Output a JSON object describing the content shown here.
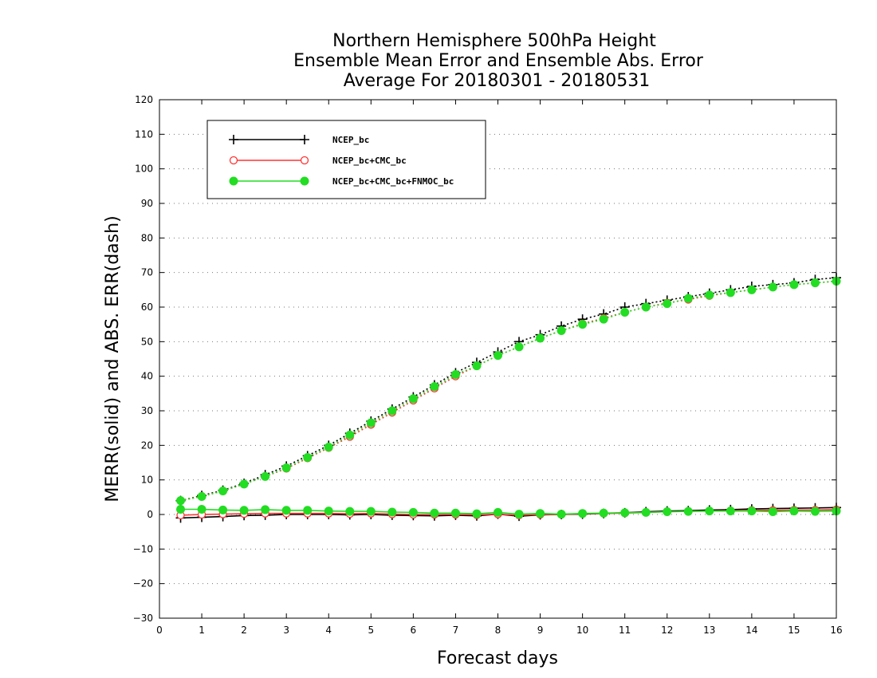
{
  "chart_data": {
    "type": "line",
    "title_lines": [
      "Northern Hemisphere 500hPa Height",
      "Ensemble Mean Error and Ensemble Abs. Error",
      "Average For 20180301 - 20180531"
    ],
    "xlabel": "Forecast days",
    "ylabel": "MERR(solid) and ABS. ERR(dash)",
    "xlim": [
      0,
      16
    ],
    "ylim": [
      -30,
      120
    ],
    "x_ticks": [
      0,
      1,
      2,
      3,
      4,
      5,
      6,
      7,
      8,
      9,
      10,
      11,
      12,
      13,
      14,
      15,
      16
    ],
    "y_ticks": [
      -30,
      -20,
      -10,
      0,
      10,
      20,
      30,
      40,
      50,
      60,
      70,
      80,
      90,
      100,
      110,
      120
    ],
    "grid": "dotted horizontal",
    "legend_position": "top-left",
    "x": [
      0.5,
      1,
      1.5,
      2,
      2.5,
      3,
      3.5,
      4,
      4.5,
      5,
      5.5,
      6,
      6.5,
      7,
      7.5,
      8,
      8.5,
      9,
      9.5,
      10,
      10.5,
      11,
      11.5,
      12,
      12.5,
      13,
      13.5,
      14,
      14.5,
      15,
      15.5,
      16
    ],
    "series": [
      {
        "name": "NCEP_bc",
        "color": "#000000",
        "marker": "plus",
        "merr": [
          -1.0,
          -0.8,
          -0.6,
          -0.3,
          -0.2,
          0.0,
          0.0,
          0.0,
          -0.1,
          0.0,
          -0.2,
          -0.3,
          -0.4,
          -0.2,
          -0.4,
          0.1,
          -0.5,
          -0.1,
          0.0,
          0.1,
          0.3,
          0.5,
          0.8,
          1.0,
          1.1,
          1.3,
          1.4,
          1.6,
          1.7,
          1.8,
          1.9,
          2.0
        ],
        "abs_err": [
          4.0,
          5.5,
          7.0,
          9.0,
          11.5,
          14.0,
          17.0,
          20.0,
          23.5,
          27.0,
          30.5,
          34.0,
          37.5,
          41.0,
          44.0,
          47.0,
          50.0,
          52.0,
          54.5,
          56.5,
          58.0,
          60.0,
          61.0,
          62.0,
          63.0,
          64.0,
          65.0,
          66.0,
          66.5,
          67.0,
          68.0,
          68.5
        ]
      },
      {
        "name": "NCEP_bc+CMC_bc",
        "color": "#ff3333",
        "marker": "open-circle",
        "merr": [
          -0.2,
          0.0,
          0.1,
          0.2,
          0.3,
          0.3,
          0.3,
          0.3,
          0.2,
          0.3,
          0.1,
          0.0,
          0.0,
          0.0,
          -0.1,
          0.1,
          -0.2,
          0.0,
          0.0,
          0.2,
          0.3,
          0.4,
          0.6,
          0.8,
          0.9,
          1.0,
          1.1,
          1.2,
          1.2,
          1.3,
          1.3,
          1.4
        ],
        "abs_err": [
          4.0,
          5.3,
          6.8,
          8.8,
          11.0,
          13.3,
          16.3,
          19.3,
          22.5,
          26.0,
          29.5,
          33.0,
          36.5,
          40.0,
          43.0,
          46.0,
          48.5,
          51.0,
          53.2,
          55.2,
          56.8,
          58.5,
          60.0,
          61.2,
          62.2,
          63.3,
          64.2,
          65.0,
          65.8,
          66.5,
          67.0,
          67.5
        ]
      },
      {
        "name": "NCEP_bc+CMC_bc+FNMOC_bc",
        "color": "#22dd22",
        "marker": "filled-circle",
        "merr": [
          1.5,
          1.5,
          1.3,
          1.2,
          1.4,
          1.2,
          1.2,
          1.0,
          0.9,
          0.9,
          0.7,
          0.6,
          0.4,
          0.4,
          0.2,
          0.6,
          0.1,
          0.3,
          0.1,
          0.3,
          0.4,
          0.5,
          0.6,
          0.8,
          0.9,
          1.0,
          1.0,
          1.0,
          0.8,
          1.0,
          0.9,
          1.0
        ],
        "abs_err": [
          4.0,
          5.2,
          6.8,
          8.8,
          11.0,
          13.5,
          16.5,
          19.5,
          23.0,
          26.5,
          30.0,
          33.5,
          37.0,
          40.5,
          43.0,
          46.0,
          48.5,
          51.0,
          53.2,
          55.0,
          56.5,
          58.5,
          60.0,
          61.0,
          62.5,
          63.5,
          64.2,
          65.0,
          65.8,
          66.5,
          67.0,
          67.5
        ]
      }
    ]
  }
}
